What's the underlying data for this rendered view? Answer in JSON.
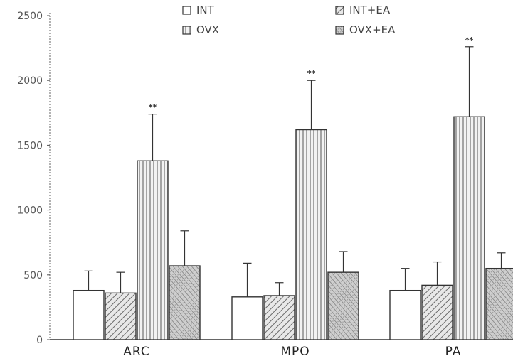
{
  "chart_data": {
    "type": "bar",
    "categories": [
      "ARC",
      "MPO",
      "PA"
    ],
    "series": [
      {
        "name": "INT",
        "values": [
          380,
          330,
          380
        ],
        "errors": [
          150,
          260,
          170
        ]
      },
      {
        "name": "INT+EA",
        "values": [
          360,
          340,
          420
        ],
        "errors": [
          160,
          100,
          180
        ]
      },
      {
        "name": "OVX",
        "values": [
          1380,
          1620,
          1720
        ],
        "errors": [
          360,
          380,
          540
        ]
      },
      {
        "name": "OVX+EA",
        "values": [
          570,
          520,
          550
        ],
        "errors": [
          270,
          160,
          120
        ]
      }
    ],
    "significance": [
      {
        "category": "ARC",
        "series": "OVX",
        "label": "**"
      },
      {
        "category": "MPO",
        "series": "OVX",
        "label": "**"
      },
      {
        "category": "PA",
        "series": "OVX",
        "label": "**"
      }
    ],
    "yticks": [
      "0",
      "500",
      "1000",
      "1500",
      "2000",
      "2500"
    ],
    "ylim": [
      0,
      2500
    ],
    "title": "",
    "xlabel": "",
    "ylabel": "",
    "legend_position": "top",
    "grid": false
  }
}
